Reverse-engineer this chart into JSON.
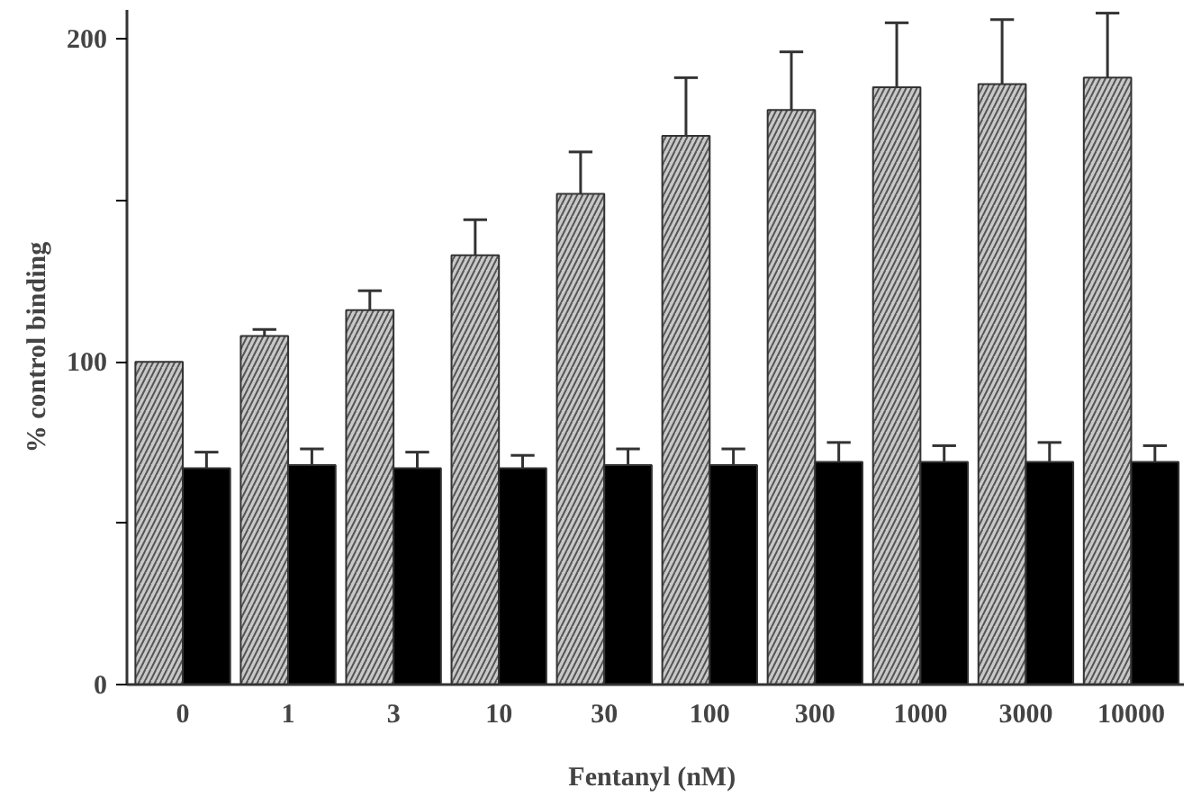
{
  "chart_data": {
    "type": "bar",
    "xlabel": "Fentanyl  (nM)",
    "ylabel": "% control binding",
    "categories": [
      "0",
      "1",
      "3",
      "10",
      "30",
      "100",
      "300",
      "1000",
      "3000",
      "10000"
    ],
    "series": [
      {
        "color": "#c8c8c8",
        "values": [
          100,
          108,
          116,
          133,
          152,
          170,
          178,
          185,
          186,
          188
        ],
        "errors": [
          null,
          2,
          6,
          11,
          13,
          18,
          18,
          20,
          20,
          20
        ]
      },
      {
        "color": "#000000",
        "values": [
          67,
          68,
          67,
          67,
          68,
          68,
          69,
          69,
          69,
          69
        ],
        "errors": [
          5,
          5,
          5,
          4,
          5,
          5,
          6,
          5,
          6,
          5
        ]
      }
    ],
    "ylim": [
      0,
      209
    ],
    "yticks": [
      0,
      {
        "value": 50,
        "label": null
      },
      100,
      {
        "value": 150,
        "label": null
      },
      200
    ],
    "grid": false
  }
}
